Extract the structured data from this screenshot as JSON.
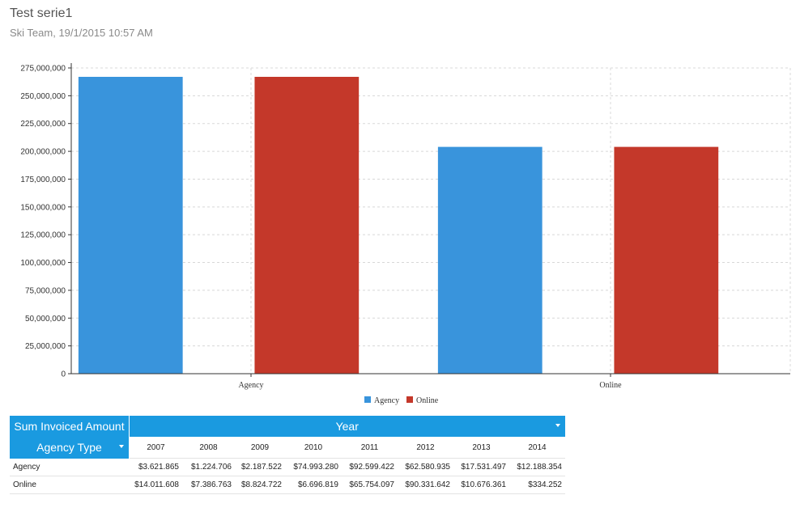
{
  "header": {
    "title": "Test serie1",
    "subtitle": "Ski Team, 19/1/2015 10:57 AM"
  },
  "colors": {
    "agency": "#3994dc",
    "online": "#c4382a",
    "table_header": "#1a9ae0"
  },
  "chart_data": {
    "type": "bar",
    "categories": [
      "Agency",
      "Online"
    ],
    "series": [
      {
        "name": "Agency",
        "values": [
          267000000,
          204000000
        ]
      },
      {
        "name": "Online",
        "values": [
          267000000,
          204000000
        ]
      }
    ],
    "ylim": [
      0,
      275000000
    ],
    "yticks": [
      0,
      25000000,
      50000000,
      75000000,
      100000000,
      125000000,
      150000000,
      175000000,
      200000000,
      225000000,
      250000000,
      275000000
    ],
    "ytick_labels": [
      "0",
      "25,000,000",
      "50,000,000",
      "75,000,000",
      "100,000,000",
      "125,000,000",
      "150,000,000",
      "175,000,000",
      "200,000,000",
      "225,000,000",
      "250,000,000",
      "275,000,000"
    ],
    "grid": true,
    "legend": "bottom-center"
  },
  "table": {
    "measure_label": "Sum Invoiced Amount",
    "column_dimension": "Year",
    "row_dimension": "Agency Type",
    "years": [
      "2007",
      "2008",
      "2009",
      "2010",
      "2011",
      "2012",
      "2013",
      "2014"
    ],
    "rows": [
      {
        "label": "Agency",
        "values": [
          "$3.621.865",
          "$1.224.706",
          "$2.187.522",
          "$74.993.280",
          "$92.599.422",
          "$62.580.935",
          "$17.531.497",
          "$12.188.354"
        ]
      },
      {
        "label": "Online",
        "values": [
          "$14.011.608",
          "$7.386.763",
          "$8.824.722",
          "$6.696.819",
          "$65.754.097",
          "$90.331.642",
          "$10.676.361",
          "$334.252"
        ]
      }
    ]
  }
}
